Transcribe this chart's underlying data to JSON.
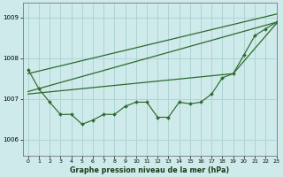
{
  "title": "Graphe pression niveau de la mer (hPa)",
  "bg_color": "#ceeaea",
  "grid_color": "#aed4d4",
  "line_color": "#2d6a2d",
  "xlim": [
    -0.5,
    23
  ],
  "ylim": [
    1005.6,
    1009.35
  ],
  "yticks": [
    1006,
    1007,
    1008,
    1009
  ],
  "xticks": [
    0,
    1,
    2,
    3,
    4,
    5,
    6,
    7,
    8,
    9,
    10,
    11,
    12,
    13,
    14,
    15,
    16,
    17,
    18,
    19,
    20,
    21,
    22,
    23
  ],
  "main_line": [
    1007.72,
    1007.25,
    1006.92,
    1006.62,
    1006.62,
    1006.38,
    1006.48,
    1006.62,
    1006.62,
    1006.82,
    1006.92,
    1006.92,
    1006.55,
    1006.55,
    1006.92,
    1006.88,
    1006.92,
    1007.12,
    1007.52,
    1007.62,
    1008.08,
    1008.55,
    1008.72,
    1008.88
  ],
  "straight_line1_x": [
    0,
    23
  ],
  "straight_line1_y": [
    1007.62,
    1009.08
  ],
  "straight_line2_x": [
    0,
    19,
    23
  ],
  "straight_line2_y": [
    1007.12,
    1007.62,
    1008.85
  ],
  "straight_line3_x": [
    0,
    23
  ],
  "straight_line3_y": [
    1007.18,
    1008.88
  ]
}
